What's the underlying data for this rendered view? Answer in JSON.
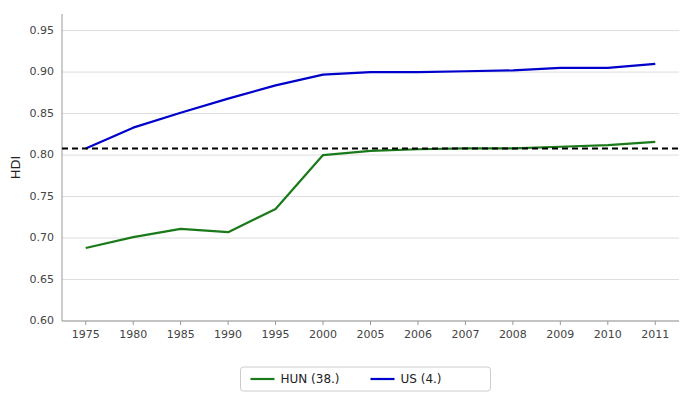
{
  "chart_data": {
    "type": "line",
    "y_label": "HDI",
    "categories": [
      "1975",
      "1980",
      "1985",
      "1990",
      "1995",
      "2000",
      "2005",
      "2006",
      "2007",
      "2008",
      "2009",
      "2010",
      "2011"
    ],
    "series": [
      {
        "name": "HUN (38.)",
        "color": "#1a7a1a",
        "values": [
          0.688,
          0.701,
          0.711,
          0.707,
          0.735,
          0.8,
          0.805,
          0.807,
          0.808,
          0.808,
          0.81,
          0.812,
          0.816
        ]
      },
      {
        "name": "US (4.)",
        "color": "#0000cc",
        "values": [
          0.808,
          0.833,
          0.851,
          0.868,
          0.884,
          0.897,
          0.9,
          0.9,
          0.901,
          0.902,
          0.905,
          0.905,
          0.91
        ]
      }
    ],
    "reference_lines": [
      {
        "value": 0.808,
        "color": "#000000",
        "line_style": "dashed"
      }
    ],
    "ylim": [
      0.6,
      0.97
    ],
    "yticks": [
      {
        "value": 0.6,
        "label": "0.60"
      },
      {
        "value": 0.65,
        "label": "0.65"
      },
      {
        "value": 0.7,
        "label": "0.70"
      },
      {
        "value": 0.75,
        "label": "0.75"
      },
      {
        "value": 0.8,
        "label": "0.80"
      },
      {
        "value": 0.85,
        "label": "0.85"
      },
      {
        "value": 0.9,
        "label": "0.90"
      },
      {
        "value": 0.95,
        "label": "0.95"
      }
    ],
    "grid": true,
    "legend": "bottom"
  }
}
